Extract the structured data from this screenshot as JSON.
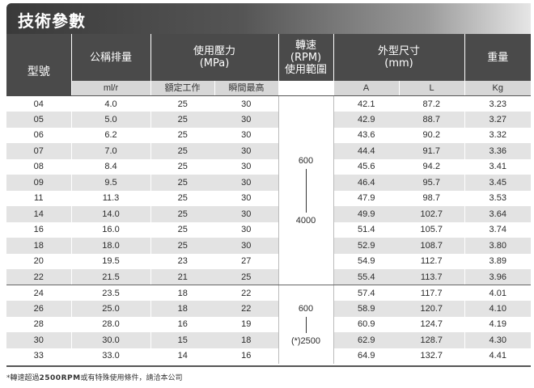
{
  "title": "技術參數",
  "header": {
    "model": "型號",
    "displacement": "公稱排量",
    "pressure": "使用壓力",
    "pressure_unit": "(MPa)",
    "speed_line1": "轉速",
    "speed_line2": "(RPM)",
    "speed_line3": "使用範圍",
    "dimension": "外型尺寸",
    "dimension_unit": "(mm)",
    "weight": "重量"
  },
  "subheader": {
    "displacement_unit": "ml/r",
    "pressure_rated": "額定工作",
    "pressure_peak": "瞬間最高",
    "dim_a": "A",
    "dim_l": "L",
    "weight_unit": "Kg"
  },
  "rpm_group1": {
    "top": "600",
    "bottom": "4000"
  },
  "rpm_group2": {
    "top": "600",
    "bottom": "(*)2500"
  },
  "rows": [
    {
      "model": "04",
      "disp": "4.0",
      "rated": "25",
      "peak": "30",
      "a": "42.1",
      "l": "87.2",
      "kg": "3.23"
    },
    {
      "model": "05",
      "disp": "5.0",
      "rated": "25",
      "peak": "30",
      "a": "42.9",
      "l": "88.7",
      "kg": "3.27"
    },
    {
      "model": "06",
      "disp": "6.2",
      "rated": "25",
      "peak": "30",
      "a": "43.6",
      "l": "90.2",
      "kg": "3.32"
    },
    {
      "model": "07",
      "disp": "7.0",
      "rated": "25",
      "peak": "30",
      "a": "44.4",
      "l": "91.7",
      "kg": "3.36"
    },
    {
      "model": "08",
      "disp": "8.4",
      "rated": "25",
      "peak": "30",
      "a": "45.6",
      "l": "94.2",
      "kg": "3.41"
    },
    {
      "model": "09",
      "disp": "9.5",
      "rated": "25",
      "peak": "30",
      "a": "46.4",
      "l": "95.7",
      "kg": "3.45"
    },
    {
      "model": "11",
      "disp": "11.3",
      "rated": "25",
      "peak": "30",
      "a": "47.9",
      "l": "98.7",
      "kg": "3.53"
    },
    {
      "model": "14",
      "disp": "14.0",
      "rated": "25",
      "peak": "30",
      "a": "49.9",
      "l": "102.7",
      "kg": "3.64"
    },
    {
      "model": "16",
      "disp": "16.0",
      "rated": "25",
      "peak": "30",
      "a": "51.4",
      "l": "105.7",
      "kg": "3.74"
    },
    {
      "model": "18",
      "disp": "18.0",
      "rated": "25",
      "peak": "30",
      "a": "52.9",
      "l": "108.7",
      "kg": "3.80"
    },
    {
      "model": "20",
      "disp": "19.5",
      "rated": "23",
      "peak": "27",
      "a": "54.9",
      "l": "112.7",
      "kg": "3.89"
    },
    {
      "model": "22",
      "disp": "21.5",
      "rated": "21",
      "peak": "25",
      "a": "55.4",
      "l": "113.7",
      "kg": "3.96"
    },
    {
      "model": "24",
      "disp": "23.5",
      "rated": "18",
      "peak": "22",
      "a": "57.4",
      "l": "117.7",
      "kg": "4.01"
    },
    {
      "model": "26",
      "disp": "25.0",
      "rated": "18",
      "peak": "22",
      "a": "58.9",
      "l": "120.7",
      "kg": "4.10"
    },
    {
      "model": "28",
      "disp": "28.0",
      "rated": "16",
      "peak": "19",
      "a": "60.9",
      "l": "124.7",
      "kg": "4.19"
    },
    {
      "model": "30",
      "disp": "30.0",
      "rated": "15",
      "peak": "18",
      "a": "62.9",
      "l": "128.7",
      "kg": "4.30"
    },
    {
      "model": "33",
      "disp": "33.0",
      "rated": "14",
      "peak": "16",
      "a": "64.9",
      "l": "132.7",
      "kg": "4.41"
    }
  ],
  "footnote_prefix": "*轉速超過",
  "footnote_emph": "2500RPM",
  "footnote_suffix": "或有特殊使用條件，請洽本公司"
}
